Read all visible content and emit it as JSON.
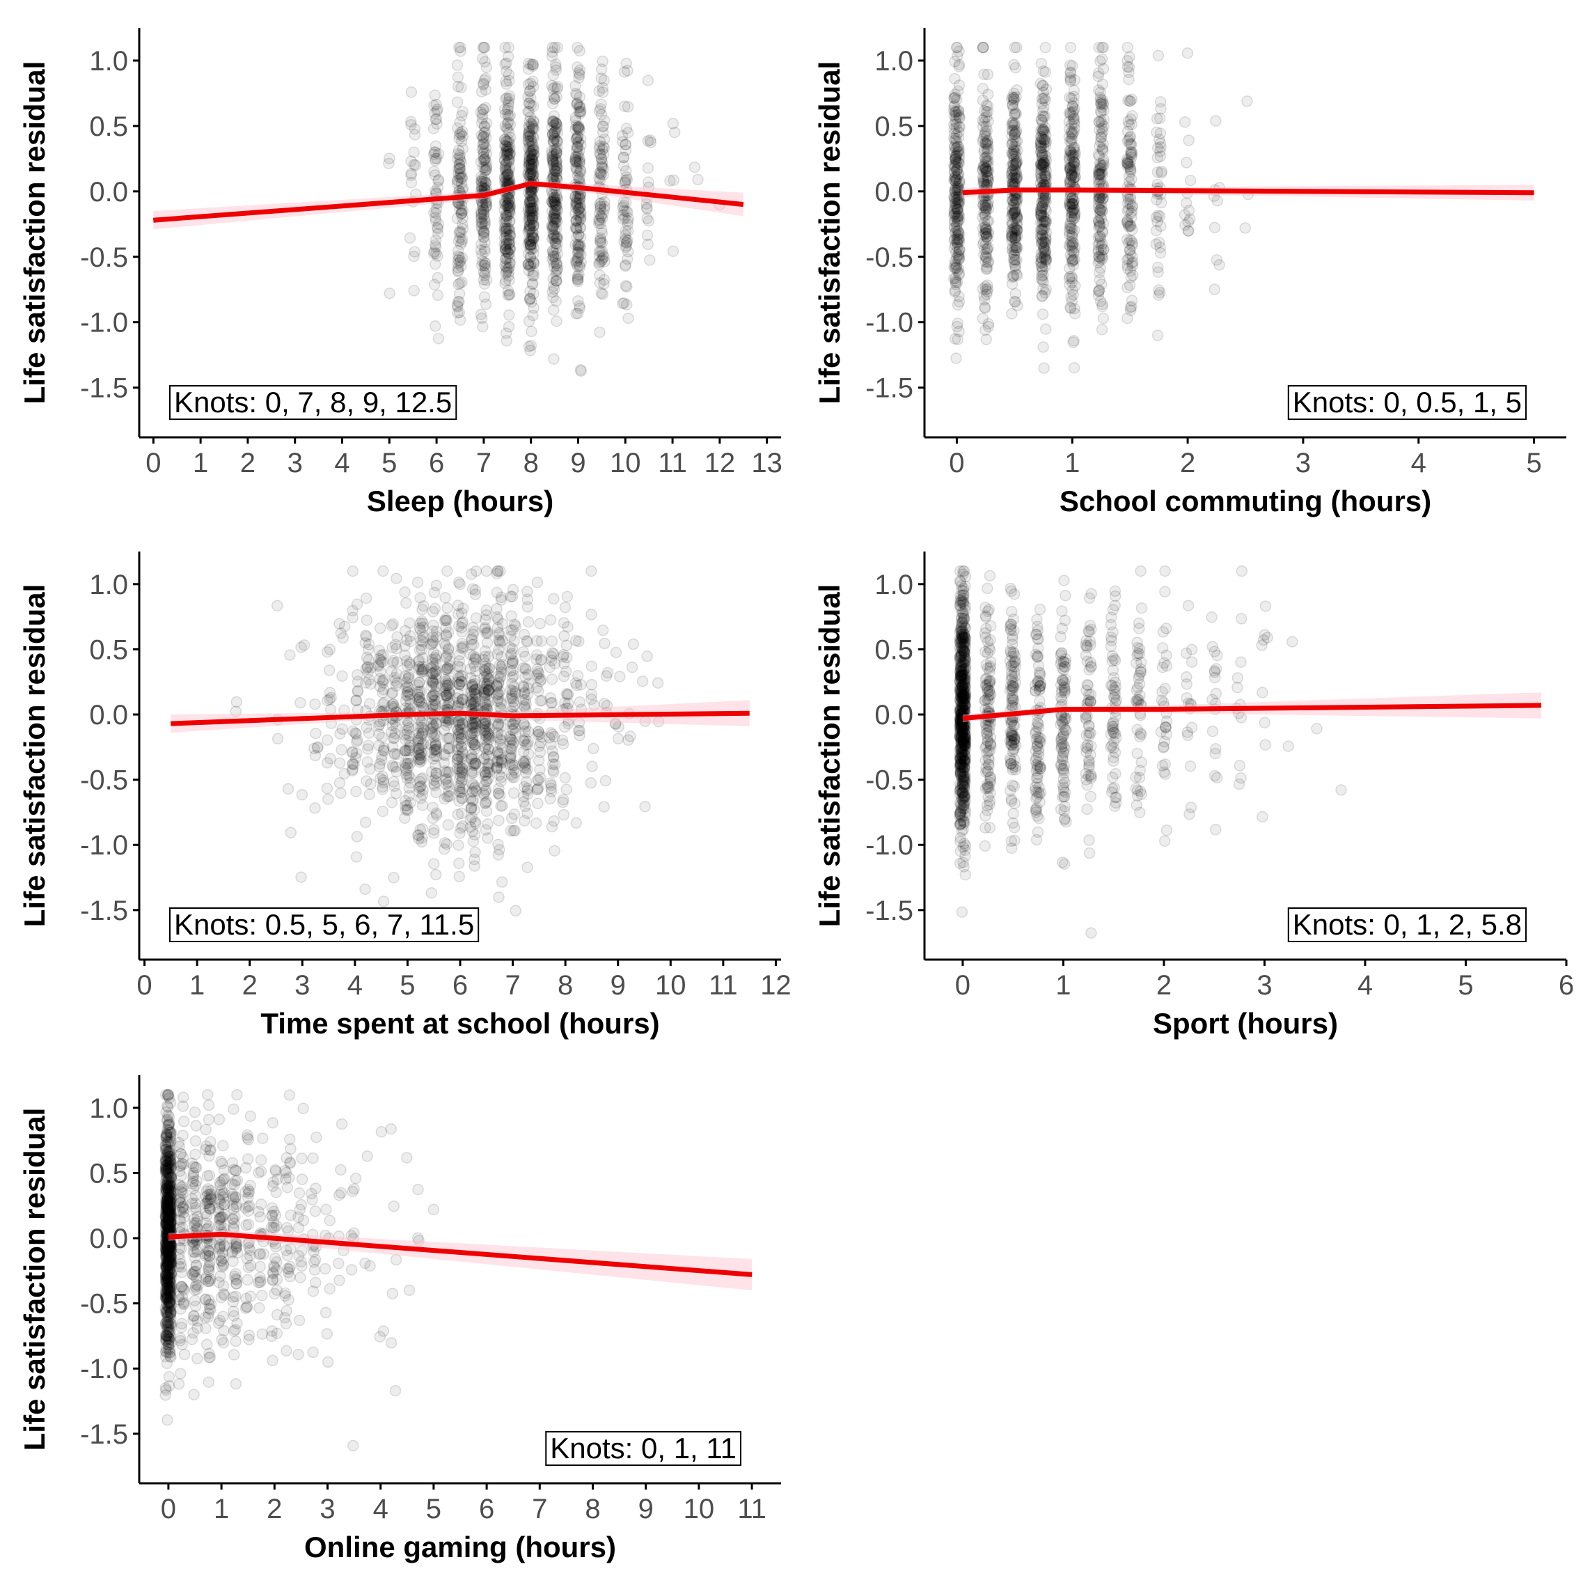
{
  "colors": {
    "points": "#000000",
    "fit_line": "#ee0000",
    "ribbon": "#ffc0cb",
    "axis": "#000000",
    "tick_text": "#4d4d4d"
  },
  "chart_data": [
    {
      "id": "sleep",
      "type": "scatter",
      "xlabel": "Sleep (hours)",
      "ylabel": "Life satisfaction residual",
      "annotation": "Knots: 0, 7, 8, 9, 12.5",
      "annotation_position": "bottom-left",
      "xlim": [
        -0.3,
        13.3
      ],
      "ylim": [
        -1.88,
        1.25
      ],
      "x_ticks": [
        0,
        1,
        2,
        3,
        4,
        5,
        6,
        7,
        8,
        9,
        10,
        11,
        12,
        13
      ],
      "x_tick_labels": [
        "0",
        "1",
        "2",
        "3",
        "4",
        "5",
        "6",
        "7",
        "8",
        "9",
        "10",
        "11",
        "12",
        "13"
      ],
      "y_ticks": [
        1.0,
        0.5,
        0.0,
        -0.5,
        -1.0,
        -1.5
      ],
      "y_tick_labels": [
        "1.0",
        "0.5",
        "0.0",
        "-0.5",
        "-1.0",
        "-1.5"
      ],
      "point_cloud": {
        "n": 1300,
        "x_center": 8.0,
        "x_spread": 1.1,
        "x_range": [
          0,
          12.5
        ],
        "x_step": 0.5,
        "y_sd": 0.45,
        "seed": 11
      },
      "fit_line": {
        "x": [
          0,
          7,
          8,
          9,
          12.5
        ],
        "y": [
          -0.22,
          -0.03,
          0.06,
          0.03,
          -0.1
        ]
      },
      "ribbon_halfwidth": [
        0.07,
        0.03,
        0.02,
        0.03,
        0.09
      ]
    },
    {
      "id": "commuting",
      "type": "scatter",
      "xlabel": "School commuting (hours)",
      "ylabel": "Life satisfaction residual",
      "annotation": "Knots: 0, 0.5, 1, 5",
      "annotation_position": "bottom-right",
      "xlim": [
        -0.28,
        5.28
      ],
      "ylim": [
        -1.88,
        1.25
      ],
      "x_ticks": [
        0,
        1,
        2,
        3,
        4,
        5
      ],
      "x_tick_labels": [
        "0",
        "1",
        "2",
        "3",
        "4",
        "5"
      ],
      "y_ticks": [
        1.0,
        0.5,
        0.0,
        -0.5,
        -1.0,
        -1.5
      ],
      "y_tick_labels": [
        "1.0",
        "0.5",
        "0.0",
        "-0.5",
        "-1.0",
        "-1.5"
      ],
      "point_cloud": {
        "n": 1300,
        "x_center": 0.7,
        "x_spread": 0.6,
        "x_range": [
          0,
          5
        ],
        "x_step": 0.25,
        "y_sd": 0.45,
        "seed": 23
      },
      "fit_line": {
        "x": [
          0.05,
          0.5,
          1,
          5
        ],
        "y": [
          -0.01,
          0.01,
          0.01,
          -0.01
        ]
      },
      "ribbon_halfwidth": [
        0.04,
        0.02,
        0.02,
        0.06
      ]
    },
    {
      "id": "school_time",
      "type": "scatter",
      "xlabel": "Time spent at school  (hours)",
      "ylabel": "Life satisfaction residual",
      "annotation": "Knots: 0.5, 5, 6, 7, 11.5",
      "annotation_position": "bottom-left",
      "xlim": [
        -0.1,
        12.1
      ],
      "ylim": [
        -1.88,
        1.25
      ],
      "x_ticks": [
        0,
        1,
        2,
        3,
        4,
        5,
        6,
        7,
        8,
        9,
        10,
        11,
        12
      ],
      "x_tick_labels": [
        "0",
        "1",
        "2",
        "3",
        "4",
        "5",
        "6",
        "7",
        "8",
        "9",
        "10",
        "11",
        "12"
      ],
      "y_ticks": [
        1.0,
        0.5,
        0.0,
        -0.5,
        -1.0,
        -1.5
      ],
      "y_tick_labels": [
        "1.0",
        "0.5",
        "0.0",
        "-0.5",
        "-1.0",
        "-1.5"
      ],
      "point_cloud": {
        "n": 1300,
        "x_center": 6.0,
        "x_spread": 1.2,
        "x_range": [
          0.5,
          11.5
        ],
        "x_step": 0.25,
        "y_sd": 0.45,
        "seed": 37
      },
      "fit_line": {
        "x": [
          0.5,
          5,
          6,
          7,
          11.5
        ],
        "y": [
          -0.07,
          0.0,
          0.01,
          -0.01,
          0.01
        ]
      },
      "ribbon_halfwidth": [
        0.07,
        0.02,
        0.02,
        0.03,
        0.1
      ]
    },
    {
      "id": "sport",
      "type": "scatter",
      "xlabel": "Sport (hours)",
      "ylabel": "Life satisfaction residual",
      "annotation": "Knots: 0, 1, 2, 5.8",
      "annotation_position": "bottom-right",
      "xlim": [
        -0.38,
        6.0
      ],
      "ylim": [
        -1.88,
        1.25
      ],
      "x_ticks": [
        0,
        1,
        2,
        3,
        4,
        5,
        6
      ],
      "x_tick_labels": [
        "0",
        "1",
        "2",
        "3",
        "4",
        "5",
        "6"
      ],
      "y_ticks": [
        1.0,
        0.5,
        0.0,
        -0.5,
        -1.0,
        -1.5
      ],
      "y_tick_labels": [
        "1.0",
        "0.5",
        "0.0",
        "-0.5",
        "-1.0",
        "-1.5"
      ],
      "point_cloud": {
        "n": 1300,
        "x_center": 0.0,
        "x_spread": 1.2,
        "x_range": [
          0,
          5.75
        ],
        "x_step": 0.25,
        "zero_share": 0.45,
        "y_sd": 0.45,
        "seed": 53
      },
      "fit_line": {
        "x": [
          0,
          1,
          2,
          5.75
        ],
        "y": [
          -0.03,
          0.04,
          0.04,
          0.07
        ]
      },
      "ribbon_halfwidth": [
        0.03,
        0.02,
        0.03,
        0.1
      ]
    },
    {
      "id": "gaming",
      "type": "scatter",
      "xlabel": "Online gaming (hours)",
      "ylabel": "Life satisfaction residual",
      "annotation": "Knots: 0, 1, 11",
      "annotation_position": "bottom-right",
      "xlim": [
        -0.55,
        11.55
      ],
      "ylim": [
        -1.88,
        1.25
      ],
      "x_ticks": [
        0,
        1,
        2,
        3,
        4,
        5,
        6,
        7,
        8,
        9,
        10,
        11
      ],
      "x_tick_labels": [
        "0",
        "1",
        "2",
        "3",
        "4",
        "5",
        "6",
        "7",
        "8",
        "9",
        "10",
        "11"
      ],
      "y_ticks": [
        1.0,
        0.5,
        0.0,
        -0.5,
        -1.0,
        -1.5
      ],
      "y_tick_labels": [
        "1.0",
        "0.5",
        "0.0",
        "-0.5",
        "-1.0",
        "-1.5"
      ],
      "point_cloud": {
        "n": 1300,
        "x_center": 0.0,
        "x_spread": 1.6,
        "x_range": [
          0,
          11
        ],
        "x_step": 0.25,
        "zero_share": 0.55,
        "y_sd": 0.45,
        "seed": 71
      },
      "fit_line": {
        "x": [
          0,
          1,
          11
        ],
        "y": [
          0.01,
          0.03,
          -0.28
        ]
      },
      "ribbon_halfwidth": [
        0.03,
        0.03,
        0.12
      ]
    }
  ]
}
